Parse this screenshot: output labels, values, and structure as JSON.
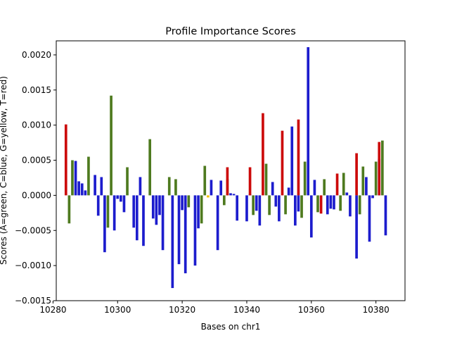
{
  "chart_data": {
    "type": "bar",
    "title": "Profile Importance Scores",
    "xlabel": "Bases on chr1",
    "ylabel": "Scores (A=green, C=blue, G=yellow, T=red)",
    "xlim": [
      10281,
      10389
    ],
    "ylim": [
      -0.0015,
      0.0022
    ],
    "xticks": [
      10280,
      10300,
      10320,
      10340,
      10360,
      10380
    ],
    "yticks": [
      -0.0015,
      -0.001,
      -0.0005,
      0.0,
      0.0005,
      0.001,
      0.0015,
      0.002
    ],
    "ytick_labels": [
      "−0.0015",
      "−0.0010",
      "−0.0005",
      "0.0000",
      "0.0005",
      "0.0010",
      "0.0015",
      "0.0020"
    ],
    "grid": false,
    "legend": "none",
    "colors": {
      "A": "#4e7a1f",
      "C": "#1c1ccd",
      "G": "#f2c200",
      "T": "#cc0a0a"
    },
    "series": [
      {
        "name": "A",
        "x": [
          10285,
          10286,
          10291,
          10297,
          10298,
          10303,
          10304,
          10310,
          10316,
          10318,
          10322,
          10323,
          10326,
          10327,
          10330,
          10333,
          10334,
          10338,
          10339,
          10342,
          10346,
          10347,
          10352,
          10357,
          10358,
          10362,
          10364,
          10369,
          10370,
          10373,
          10375,
          10376,
          10380,
          10382
        ],
        "y": [
          -0.0004,
          0.0005,
          0.00055,
          -0.00046,
          0.00142,
          0.0004,
          0.0,
          0.0008,
          0.00026,
          0.00023,
          -0.00017,
          0.0,
          -0.0004,
          0.00042,
          0.0,
          -0.00014,
          0.00023,
          0.0,
          0.0,
          -0.00028,
          0.00045,
          -0.00028,
          -0.00027,
          -0.00032,
          0.00048,
          -0.00024,
          0.00023,
          -0.00022,
          0.00032,
          0.0,
          -0.00027,
          0.00041,
          0.00048,
          0.00078
        ]
      },
      {
        "name": "C",
        "x": [
          10287,
          10288,
          10289,
          10290,
          10292,
          10293,
          10294,
          10295,
          10296,
          10299,
          10300,
          10301,
          10302,
          10305,
          10306,
          10307,
          10308,
          10309,
          10311,
          10312,
          10313,
          10314,
          10315,
          10317,
          10319,
          10320,
          10321,
          10324,
          10325,
          10329,
          10331,
          10332,
          10335,
          10336,
          10337,
          10340,
          10341,
          10343,
          10344,
          10348,
          10349,
          10350,
          10353,
          10354,
          10355,
          10356,
          10359,
          10360,
          10361,
          10365,
          10366,
          10367,
          10371,
          10372,
          10374,
          10377,
          10378,
          10379,
          10381,
          10383
        ],
        "y": [
          0.00049,
          0.0002,
          0.00017,
          7e-05,
          0.0,
          0.00029,
          -0.00029,
          0.00026,
          -0.00081,
          -0.0005,
          -5e-05,
          -9e-05,
          -0.00024,
          -0.00046,
          -0.00064,
          0.00026,
          -0.00072,
          0.0,
          -0.00033,
          -0.00042,
          -0.00028,
          -0.00078,
          0.0,
          -0.00132,
          -0.00098,
          -0.00021,
          -0.00111,
          -0.001,
          -0.00047,
          0.00022,
          -0.00078,
          0.00021,
          3e-05,
          2e-05,
          -0.00036,
          -0.00037,
          2e-05,
          -0.00022,
          -0.00043,
          0.00019,
          -0.00016,
          -0.00037,
          0.00011,
          0.00098,
          -0.00043,
          -0.00023,
          0.00211,
          -0.0006,
          0.00022,
          -0.00027,
          -0.00019,
          -0.0002,
          4e-05,
          -0.0003,
          -0.0009,
          0.00026,
          -0.00066,
          -4e-05,
          0.00052,
          -0.00057
        ]
      },
      {
        "name": "G",
        "x": [
          10328
        ],
        "y": [
          -3e-05
        ]
      },
      {
        "name": "T",
        "x": [
          10284,
          10334,
          10341,
          10345,
          10351,
          10356,
          10363,
          10368,
          10374,
          10381
        ],
        "y": [
          0.00101,
          0.0004,
          0.0004,
          0.00117,
          0.00092,
          0.00108,
          -0.00026,
          0.00031,
          0.0006,
          0.00076
        ]
      }
    ]
  }
}
